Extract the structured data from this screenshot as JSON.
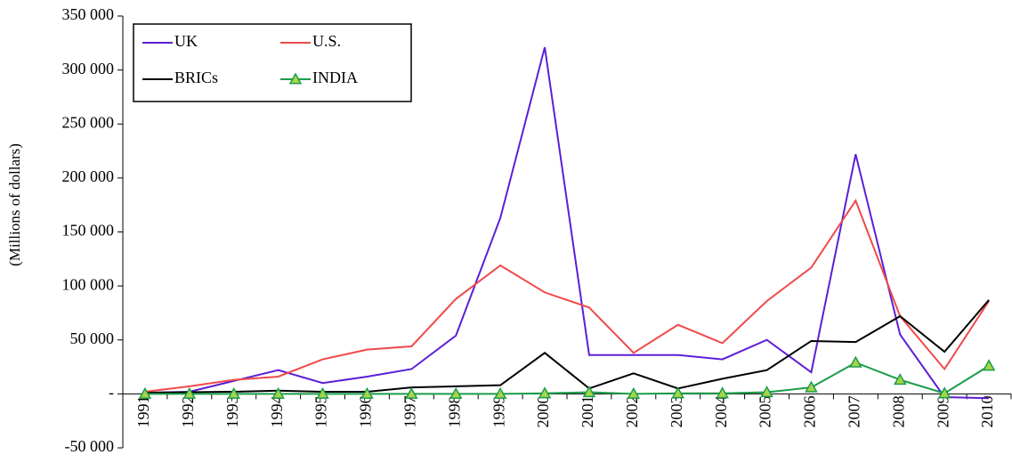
{
  "chart_data": {
    "type": "line",
    "y_label": "(Millions of dollars)",
    "categories": [
      "1991",
      "1992",
      "1993",
      "1994",
      "1995",
      "1996",
      "1997",
      "1998",
      "1999",
      "2000",
      "2001",
      "2002",
      "2003",
      "2004",
      "2005",
      "2006",
      "2007",
      "2008",
      "2009",
      "2010"
    ],
    "series": [
      {
        "name": "UK",
        "color": "#5b1fd6",
        "values": [
          1000,
          2000,
          12000,
          22000,
          10000,
          16000,
          23000,
          54000,
          163000,
          321000,
          36000,
          36000,
          36000,
          32000,
          50000,
          20000,
          222000,
          55000,
          -3000,
          -4000
        ]
      },
      {
        "name": "U.S.",
        "color": "#f04a4a",
        "values": [
          2000,
          7000,
          13000,
          16000,
          32000,
          41000,
          44000,
          88000,
          119000,
          94000,
          80000,
          38000,
          64000,
          47000,
          86000,
          117000,
          179000,
          72000,
          23000,
          86000
        ]
      },
      {
        "name": "BRICs",
        "color": "#000000",
        "values": [
          1000,
          1500,
          2000,
          3000,
          2000,
          2000,
          6000,
          7000,
          8000,
          38000,
          5000,
          19000,
          5000,
          14000,
          22000,
          49000,
          48000,
          72000,
          39000,
          87000
        ]
      },
      {
        "name": "INDIA",
        "color": "#1a9e4a",
        "marker": "triangle",
        "marker_color": "#a8d44a",
        "values": [
          0,
          0,
          0,
          0,
          0,
          0,
          0,
          0,
          0,
          500,
          1500,
          0,
          500,
          500,
          1500,
          6000,
          29000,
          13000,
          500,
          26000
        ]
      }
    ],
    "ylim": [
      -50000,
      350000
    ],
    "yticks": [
      {
        "value": -50000,
        "label": "-50 000"
      },
      {
        "value": 0,
        "label": "-"
      },
      {
        "value": 50000,
        "label": "50 000"
      },
      {
        "value": 100000,
        "label": "100 000"
      },
      {
        "value": 150000,
        "label": "150 000"
      },
      {
        "value": 200000,
        "label": "200 000"
      },
      {
        "value": 250000,
        "label": "250 000"
      },
      {
        "value": 300000,
        "label": "300 000"
      },
      {
        "value": 350000,
        "label": "350 000"
      }
    ],
    "legend": "upper left",
    "grid": false
  }
}
